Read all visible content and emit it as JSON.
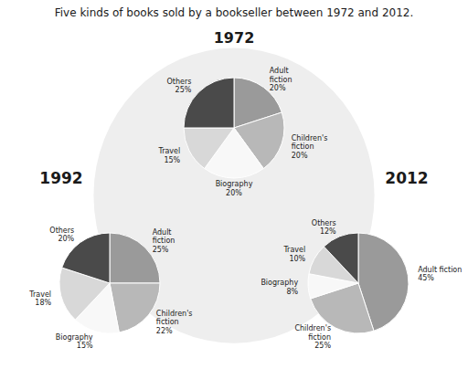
{
  "chart_data": [
    {
      "type": "pie",
      "title": "Five kinds of books sold by a bookseller between 1972 and 2012.",
      "subtitle": "1972",
      "categories": [
        "Adult\nfiction",
        "Children's\nfiction",
        "Biography",
        "Travel",
        "Others"
      ],
      "values": [
        20,
        20,
        20,
        15,
        25
      ],
      "value_labels": [
        "20%",
        "20%",
        "20%",
        "15%",
        "25%"
      ],
      "colors": [
        "#9a9a9a",
        "#b8b8b8",
        "#f8f8f8",
        "#d8d8d8",
        "#4a4a4a"
      ],
      "data_labels": true
    },
    {
      "type": "pie",
      "subtitle": "1992",
      "categories": [
        "Adult\nfiction",
        "Children's\nfiction",
        "Biography",
        "Travel",
        "Others"
      ],
      "values": [
        25,
        22,
        15,
        18,
        20
      ],
      "value_labels": [
        "25%",
        "22%",
        "15%",
        "18%",
        "20%"
      ],
      "colors": [
        "#9a9a9a",
        "#b8b8b8",
        "#f8f8f8",
        "#d8d8d8",
        "#4a4a4a"
      ],
      "data_labels": true
    },
    {
      "type": "pie",
      "subtitle": "2012",
      "categories": [
        "Adult fiction",
        "Children's\nfiction",
        "Biography",
        "Travel",
        "Others"
      ],
      "values": [
        45,
        25,
        8,
        10,
        12
      ],
      "value_labels": [
        "45%",
        "25%",
        "8%",
        "10%",
        "12%"
      ],
      "colors": [
        "#9a9a9a",
        "#b8b8b8",
        "#f8f8f8",
        "#d8d8d8",
        "#4a4a4a"
      ],
      "data_labels": true
    }
  ]
}
